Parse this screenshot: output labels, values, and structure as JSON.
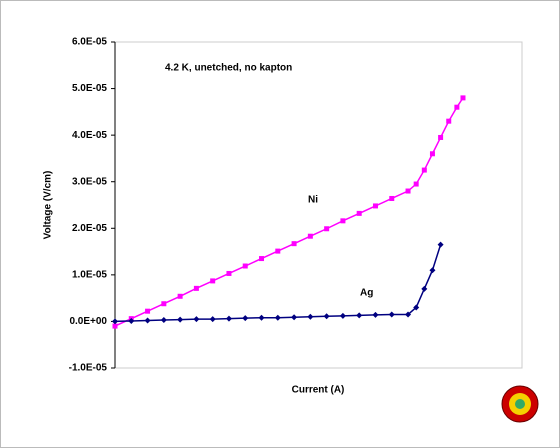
{
  "chart_data": {
    "type": "line",
    "annotations": [
      "4.2 K, unetched, no kapton",
      "Ni",
      "Ag"
    ],
    "xlabel": "Current (A)",
    "ylabel": "Voltage (V/cm)",
    "xlim": [
      0,
      100
    ],
    "ylim": [
      -1e-05,
      6e-05
    ],
    "yticks": [
      {
        "value": 6e-05,
        "label": "6.0E-05"
      },
      {
        "value": 5e-05,
        "label": "5.0E-05"
      },
      {
        "value": 4e-05,
        "label": "4.0E-05"
      },
      {
        "value": 3e-05,
        "label": "3.0E-05"
      },
      {
        "value": 2e-05,
        "label": "2.0E-05"
      },
      {
        "value": 1e-05,
        "label": "1.0E-05"
      },
      {
        "value": 0,
        "label": "0.0E+00"
      },
      {
        "value": -1e-05,
        "label": "-1.0E-05"
      }
    ],
    "series": [
      {
        "name": "Ni",
        "color": "#ff00ff",
        "marker": "square",
        "x": [
          0,
          4,
          8,
          12,
          16,
          20,
          24,
          28,
          32,
          36,
          40,
          44,
          48,
          52,
          56,
          60,
          64,
          68,
          72,
          74,
          76,
          78,
          80,
          82,
          84,
          85.5
        ],
        "values": [
          -1e-06,
          6e-07,
          2.2e-06,
          3.8e-06,
          5.4e-06,
          7.1e-06,
          8.7e-06,
          1.03e-05,
          1.19e-05,
          1.35e-05,
          1.51e-05,
          1.67e-05,
          1.83e-05,
          1.99e-05,
          2.16e-05,
          2.32e-05,
          2.48e-05,
          2.64e-05,
          2.8e-05,
          2.95e-05,
          3.25e-05,
          3.6e-05,
          3.95e-05,
          4.3e-05,
          4.6e-05,
          4.8e-05
        ]
      },
      {
        "name": "Ag",
        "color": "#000080",
        "marker": "diamond",
        "x": [
          0,
          4,
          8,
          12,
          16,
          20,
          24,
          28,
          32,
          36,
          40,
          44,
          48,
          52,
          56,
          60,
          64,
          68,
          72,
          74,
          76,
          78,
          80
        ],
        "values": [
          0,
          1e-07,
          2e-07,
          3e-07,
          4e-07,
          5e-07,
          5e-07,
          6e-07,
          7e-07,
          8e-07,
          8e-07,
          9e-07,
          1e-06,
          1.1e-06,
          1.2e-06,
          1.3e-06,
          1.4e-06,
          1.5e-06,
          1.5e-06,
          3e-06,
          7e-06,
          1.1e-05,
          1.65e-05
        ]
      }
    ]
  }
}
